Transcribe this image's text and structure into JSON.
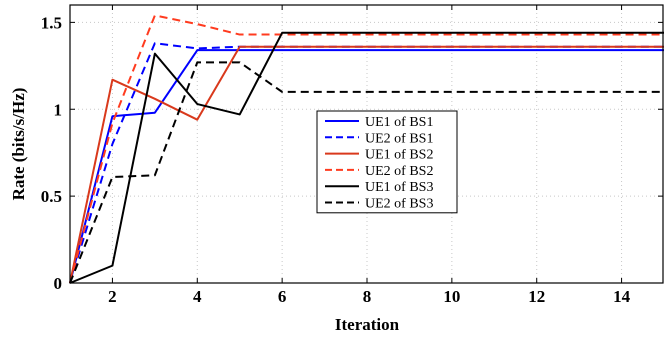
{
  "chart_data": {
    "type": "line",
    "title": "",
    "xlabel": "Iteration",
    "ylabel": "Rate (bits/s/Hz)",
    "xlim": [
      1,
      15
    ],
    "ylim": [
      0,
      1.6
    ],
    "xticks": [
      2,
      4,
      6,
      8,
      10,
      12,
      14
    ],
    "xtick_labels": [
      "2",
      "4",
      "6",
      "8",
      "10",
      "12",
      "14"
    ],
    "yticks": [
      0,
      0.5,
      1,
      1.5
    ],
    "ytick_labels": [
      "0",
      "0.5",
      "1",
      "1.5"
    ],
    "grid": true,
    "legend_position": "center",
    "x": [
      1,
      2,
      3,
      4,
      5,
      6,
      7,
      8,
      9,
      10,
      11,
      12,
      13,
      14,
      15
    ],
    "series": [
      {
        "name": "UE1 of BS1",
        "color": "#0000ff",
        "dash": "solid",
        "values": [
          0,
          0.96,
          0.98,
          1.34,
          1.34,
          1.34,
          1.34,
          1.34,
          1.34,
          1.34,
          1.34,
          1.34,
          1.34,
          1.34,
          1.34
        ]
      },
      {
        "name": "UE2 of BS1",
        "color": "#0000ff",
        "dash": "dashed",
        "values": [
          0,
          0.8,
          1.38,
          1.35,
          1.36,
          1.36,
          1.36,
          1.36,
          1.36,
          1.36,
          1.36,
          1.36,
          1.36,
          1.36,
          1.36
        ]
      },
      {
        "name": "UE1 of BS2",
        "color": "#d9391c",
        "dash": "solid",
        "values": [
          0,
          1.17,
          1.06,
          0.94,
          1.36,
          1.36,
          1.36,
          1.36,
          1.36,
          1.36,
          1.36,
          1.36,
          1.36,
          1.36,
          1.36
        ]
      },
      {
        "name": "UE2 of BS2",
        "color": "#ff3b1f",
        "dash": "dashed",
        "values": [
          0,
          0.92,
          1.54,
          1.49,
          1.43,
          1.43,
          1.43,
          1.43,
          1.43,
          1.43,
          1.43,
          1.43,
          1.43,
          1.43,
          1.43
        ]
      },
      {
        "name": "UE1 of BS3",
        "color": "#000000",
        "dash": "solid",
        "values": [
          0,
          0.1,
          1.32,
          1.03,
          0.97,
          1.44,
          1.44,
          1.44,
          1.44,
          1.44,
          1.44,
          1.44,
          1.44,
          1.44,
          1.44
        ]
      },
      {
        "name": "UE2 of BS3",
        "color": "#000000",
        "dash": "dashed",
        "values": [
          0,
          0.61,
          0.62,
          1.27,
          1.27,
          1.1,
          1.1,
          1.1,
          1.1,
          1.1,
          1.1,
          1.1,
          1.1,
          1.1,
          1.1
        ]
      }
    ]
  }
}
